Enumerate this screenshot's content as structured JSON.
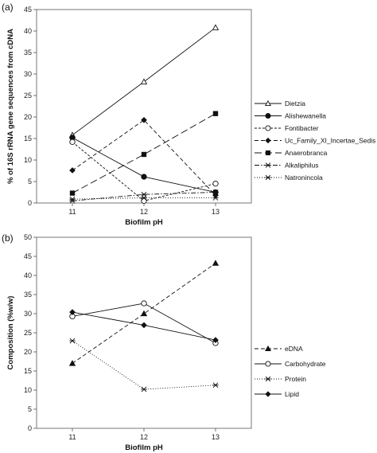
{
  "chart_data": [
    {
      "type": "line",
      "panel_label": "(a)",
      "xlabel": "Biofilm pH",
      "ylabel": "% of 16S rRNA gene sequences from cDNA",
      "x": [
        11,
        12,
        13
      ],
      "x_ticks": [
        "11",
        "12",
        "13"
      ],
      "ylim": [
        0,
        45
      ],
      "y_ticks": [
        0,
        5,
        10,
        15,
        20,
        25,
        30,
        35,
        40,
        45
      ],
      "legend_position": "right",
      "series": [
        {
          "name": "Dietzia",
          "values": [
            15.8,
            28.2,
            40.8
          ],
          "marker": "triangle-open",
          "dash": "solid"
        },
        {
          "name": "Alishewanella",
          "values": [
            15.2,
            6.1,
            2.5
          ],
          "marker": "circle-filled",
          "dash": "solid"
        },
        {
          "name": "Fontibacter",
          "values": [
            14.2,
            0.5,
            4.5
          ],
          "marker": "circle-open",
          "dash": "short-dash"
        },
        {
          "name": "Uc_Family_XI_Incertae_Sedis",
          "values": [
            7.6,
            19.3,
            1.8
          ],
          "marker": "diamond-filled",
          "dash": "dash"
        },
        {
          "name": "Anaerobranca",
          "values": [
            2.3,
            11.3,
            20.8
          ],
          "marker": "square-filled",
          "dash": "long-dash"
        },
        {
          "name": "Alkaliphilus",
          "values": [
            0.5,
            2.0,
            2.5
          ],
          "marker": "star",
          "dash": "dash-dot"
        },
        {
          "name": "Natronincola",
          "values": [
            0.9,
            1.2,
            1.2
          ],
          "marker": "star",
          "dash": "dot"
        }
      ]
    },
    {
      "type": "line",
      "panel_label": "(b)",
      "xlabel": "Biofilm pH",
      "ylabel": "Composition (%w/w)",
      "x": [
        11,
        12,
        13
      ],
      "x_ticks": [
        "11",
        "12",
        "13"
      ],
      "ylim": [
        0,
        50
      ],
      "y_ticks": [
        0,
        5,
        10,
        15,
        20,
        25,
        30,
        35,
        40,
        45,
        50
      ],
      "legend_position": "right",
      "series": [
        {
          "name": "eDNA",
          "values": [
            17.0,
            30.0,
            43.2
          ],
          "marker": "triangle-filled",
          "dash": "dash"
        },
        {
          "name": "Carbohydrate",
          "values": [
            29.3,
            32.7,
            22.3
          ],
          "marker": "circle-open",
          "dash": "solid"
        },
        {
          "name": "Protein",
          "values": [
            22.9,
            10.2,
            11.3
          ],
          "marker": "star",
          "dash": "dot"
        },
        {
          "name": "Lipid",
          "values": [
            30.4,
            27.0,
            23.1
          ],
          "marker": "diamond-filled",
          "dash": "solid"
        }
      ]
    }
  ]
}
